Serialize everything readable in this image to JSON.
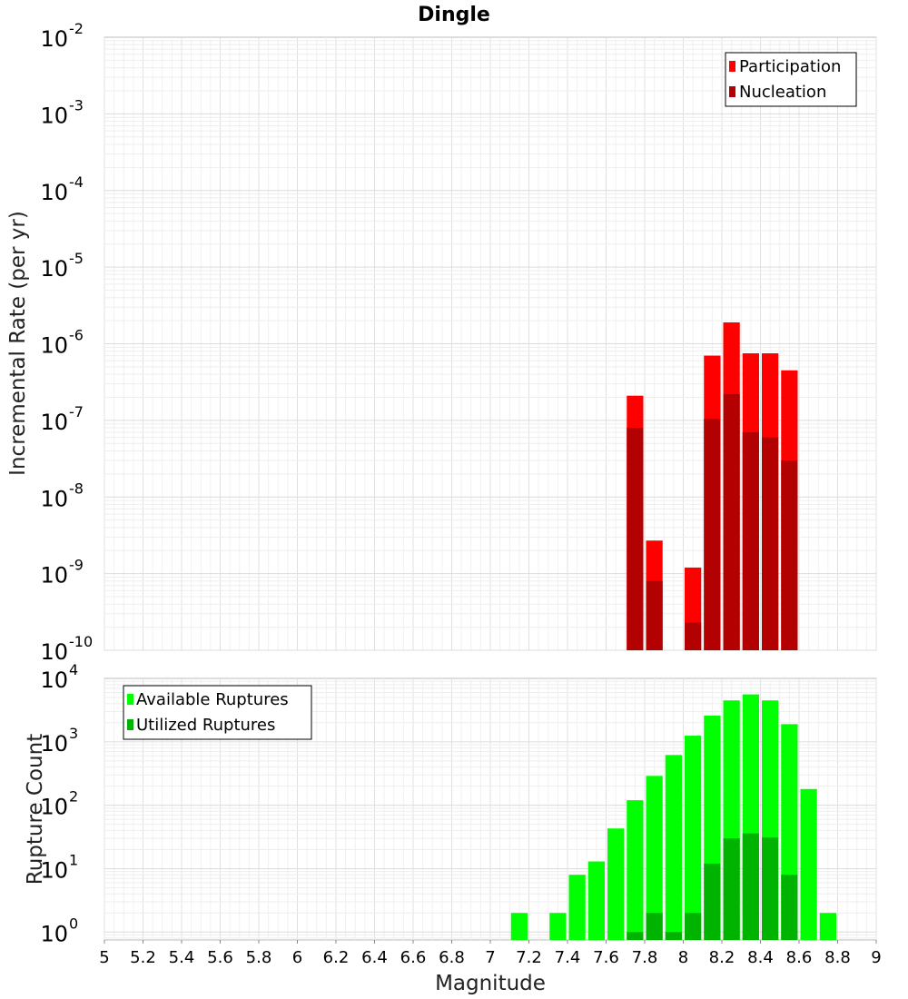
{
  "chart_data": [
    {
      "type": "bar",
      "scale": "log",
      "title": "Dingle",
      "ylabel": "Incremental Rate (per yr)",
      "xlabel": "",
      "xlim": [
        5,
        9
      ],
      "ylim": [
        1e-10,
        0.01
      ],
      "y_tick_exponents": [
        "-10",
        "-9",
        "-8",
        "-7",
        "-6",
        "-5",
        "-4",
        "-3",
        "-2"
      ],
      "y_tick_base": "10",
      "legend_position": "top-right",
      "colors": {
        "Participation": "#ff0000",
        "Nucleation": "#b30000"
      },
      "series": [
        {
          "name": "Participation",
          "x": [
            7.75,
            7.85,
            8.05,
            8.15,
            8.25,
            8.35,
            8.45,
            8.55
          ],
          "values": [
            2.1e-07,
            2.7e-09,
            1.2e-09,
            7e-07,
            1.9e-06,
            7.5e-07,
            7.5e-07,
            4.5e-07
          ]
        },
        {
          "name": "Nucleation",
          "x": [
            7.75,
            7.85,
            8.05,
            8.15,
            8.25,
            8.35,
            8.45,
            8.55
          ],
          "values": [
            8e-08,
            8e-10,
            2.3e-10,
            1.05e-07,
            2.2e-07,
            7e-08,
            6e-08,
            3e-08
          ]
        }
      ]
    },
    {
      "type": "bar",
      "scale": "log",
      "title": "",
      "ylabel": "Rupture Count",
      "xlabel": "Magnitude",
      "xlim": [
        5,
        9
      ],
      "ylim": [
        0.75,
        10000
      ],
      "y_tick_exponents": [
        "0",
        "1",
        "2",
        "3",
        "4"
      ],
      "y_tick_base": "10",
      "x_tick_labels": [
        "5",
        "5.2",
        "5.4",
        "5.6",
        "5.8",
        "6",
        "6.2",
        "6.4",
        "6.6",
        "6.8",
        "7",
        "7.2",
        "7.4",
        "7.6",
        "7.8",
        "8",
        "8.2",
        "8.4",
        "8.6",
        "8.8",
        "9"
      ],
      "legend_position": "top-left",
      "colors": {
        "Available Ruptures": "#00ff00",
        "Utilized Ruptures": "#00b300"
      },
      "series": [
        {
          "name": "Available Ruptures",
          "x": [
            7.15,
            7.35,
            7.45,
            7.55,
            7.65,
            7.75,
            7.85,
            7.95,
            8.05,
            8.15,
            8.25,
            8.35,
            8.45,
            8.55,
            8.65,
            8.75
          ],
          "values": [
            2,
            2,
            8,
            13,
            43,
            120,
            290,
            620,
            1250,
            2600,
            4500,
            5600,
            4500,
            1900,
            180,
            2
          ]
        },
        {
          "name": "Utilized Ruptures",
          "x": [
            7.75,
            7.85,
            7.95,
            8.05,
            8.15,
            8.25,
            8.35,
            8.45,
            8.55
          ],
          "values": [
            1,
            2,
            1,
            2,
            12,
            30,
            36,
            31,
            8
          ]
        }
      ]
    }
  ]
}
